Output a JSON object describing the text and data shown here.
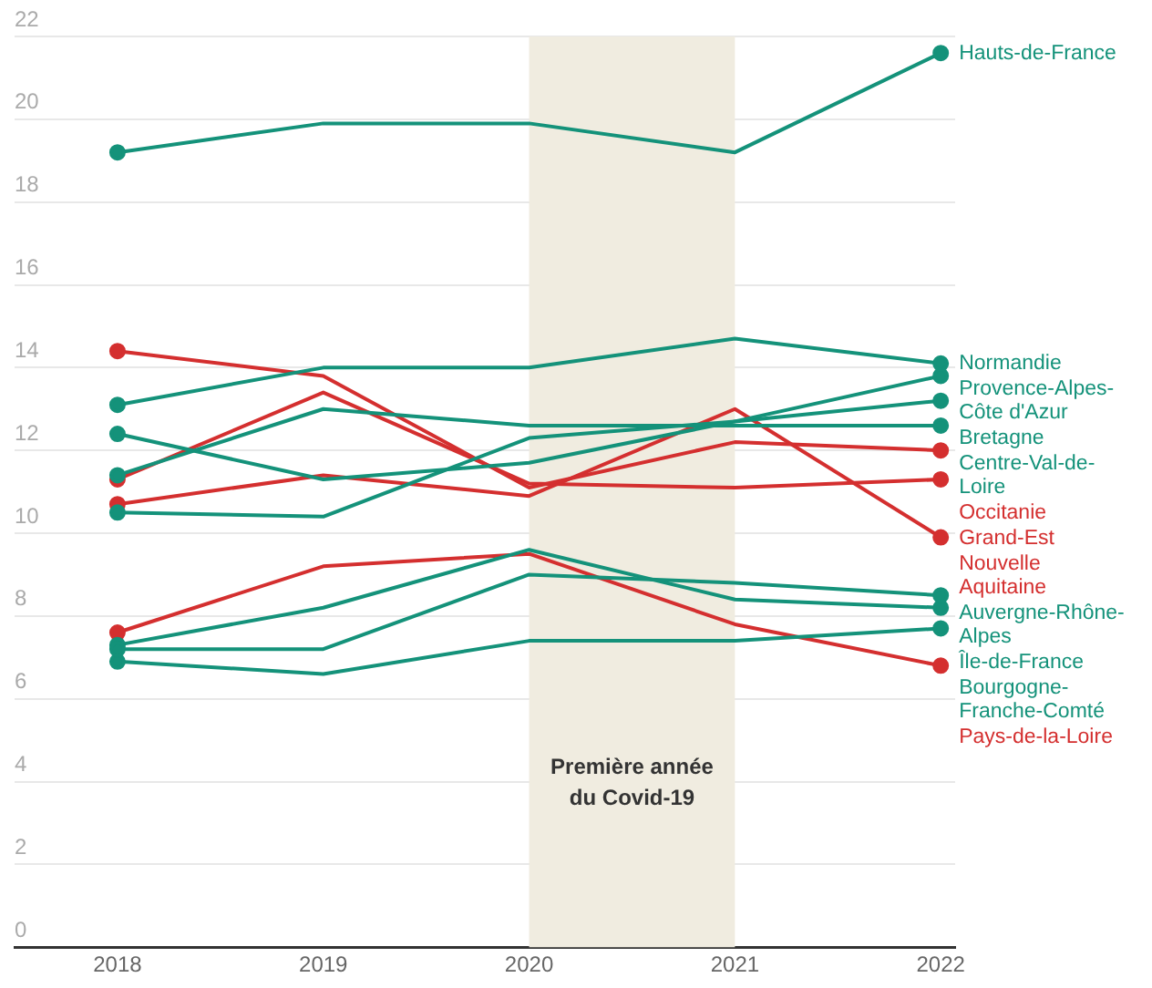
{
  "chart_data": {
    "type": "line",
    "x": [
      2018,
      2019,
      2020,
      2021,
      2022
    ],
    "xlim": [
      2017.5,
      2022.07
    ],
    "xticks": [
      2018,
      2019,
      2020,
      2021,
      2022
    ],
    "ylim": [
      0,
      22
    ],
    "yticks": [
      0,
      2,
      4,
      6,
      8,
      10,
      12,
      14,
      16,
      18,
      20,
      22
    ],
    "grid": "y",
    "line_style": "solid",
    "bands": [
      {
        "axis": "x",
        "from": 2020,
        "to": 2021,
        "label": "Première année du Covid-19",
        "color": "#f0ece0"
      }
    ],
    "series": [
      {
        "name": "Hauts-de-France",
        "color": "#14927a",
        "values": [
          19.2,
          19.9,
          19.9,
          19.2,
          21.6
        ]
      },
      {
        "name": "Normandie",
        "color": "#14927a",
        "values": [
          13.1,
          14.0,
          14.0,
          14.7,
          14.1
        ]
      },
      {
        "name": "Provence-Alpes-Côte d'Azur",
        "color": "#14927a",
        "values": [
          12.4,
          11.3,
          11.7,
          12.7,
          13.8
        ]
      },
      {
        "name": "Bretagne",
        "color": "#14927a",
        "values": [
          10.5,
          10.4,
          12.3,
          12.7,
          13.2
        ]
      },
      {
        "name": "Centre-Val-de-Loire",
        "color": "#14927a",
        "values": [
          11.4,
          13.0,
          12.6,
          12.6,
          12.6
        ]
      },
      {
        "name": "Occitanie",
        "color": "#d42f2f",
        "values": [
          14.4,
          13.8,
          11.1,
          12.2,
          12.0
        ]
      },
      {
        "name": "Grand-Est",
        "color": "#d42f2f",
        "values": [
          11.3,
          13.4,
          11.2,
          11.1,
          11.3
        ]
      },
      {
        "name": "Nouvelle Aquitaine",
        "color": "#d42f2f",
        "values": [
          10.7,
          11.4,
          10.9,
          13.0,
          9.9
        ]
      },
      {
        "name": "Auvergne-Rhône-Alpes",
        "color": "#14927a",
        "values": [
          7.2,
          7.2,
          9.0,
          8.8,
          8.5
        ]
      },
      {
        "name": "Île-de-France",
        "color": "#14927a",
        "values": [
          7.3,
          8.2,
          9.6,
          8.4,
          8.2
        ]
      },
      {
        "name": "Bourgogne-Franche-Comté",
        "color": "#14927a",
        "values": [
          6.9,
          6.6,
          7.4,
          7.4,
          7.7
        ]
      },
      {
        "name": "Pays-de-la-Loire",
        "color": "#d42f2f",
        "values": [
          7.6,
          9.2,
          9.5,
          7.8,
          6.8
        ]
      }
    ]
  }
}
